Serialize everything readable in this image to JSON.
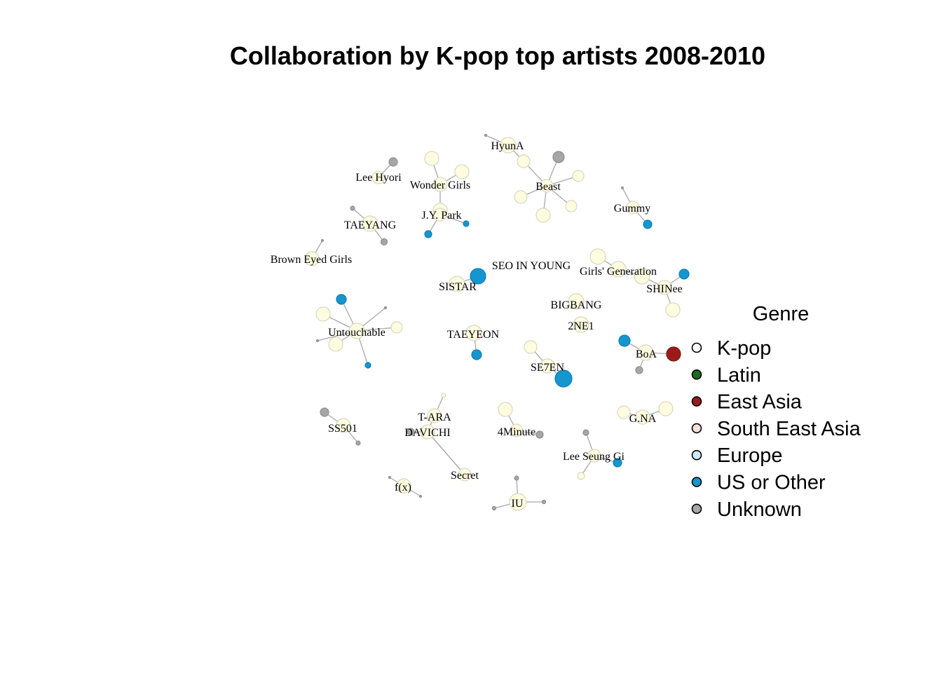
{
  "chart_data": {
    "type": "network",
    "title": "Collaboration by K-pop top artists 2008-2010",
    "legend": {
      "title": "Genre",
      "placement": "right",
      "items": [
        {
          "label": "K-pop",
          "color": "#FFFFFF"
        },
        {
          "label": "Latin",
          "color": "#1F6B1F"
        },
        {
          "label": "East Asia",
          "color": "#9B1B1B"
        },
        {
          "label": "South East Asia",
          "color": "#F8DDDD"
        },
        {
          "label": "Europe",
          "color": "#CFE8F5"
        },
        {
          "label": "US or Other",
          "color": "#1596CE"
        },
        {
          "label": "Unknown",
          "color": "#A6A6A6"
        }
      ]
    },
    "node_colors": {
      "kpop": "#FFFCE0",
      "kpop_stroke": "#D9D6C0",
      "east_asia": "#9B1B1B",
      "us_other": "#1596CE",
      "unknown": "#A6A6A6",
      "edge": "#A8A8A8"
    },
    "labels": [
      "HyunA",
      "Lee Hyori",
      "Wonder Girls",
      "Beast",
      "Gummy",
      "J.Y. Park",
      "TAEYANG",
      "Brown Eyed Girls",
      "SEO IN YOUNG",
      "Girls' Generation",
      "SISTAR",
      "SHINee",
      "BIGBANG",
      "2NE1",
      "Untouchable",
      "TAEYEON",
      "BoA",
      "SE7EN",
      "T-ARA",
      "SS501",
      "DAVICHI",
      "4Minute",
      "G.NA",
      "Lee Seung Gi",
      "Secret",
      "f(x)",
      "IU"
    ]
  }
}
